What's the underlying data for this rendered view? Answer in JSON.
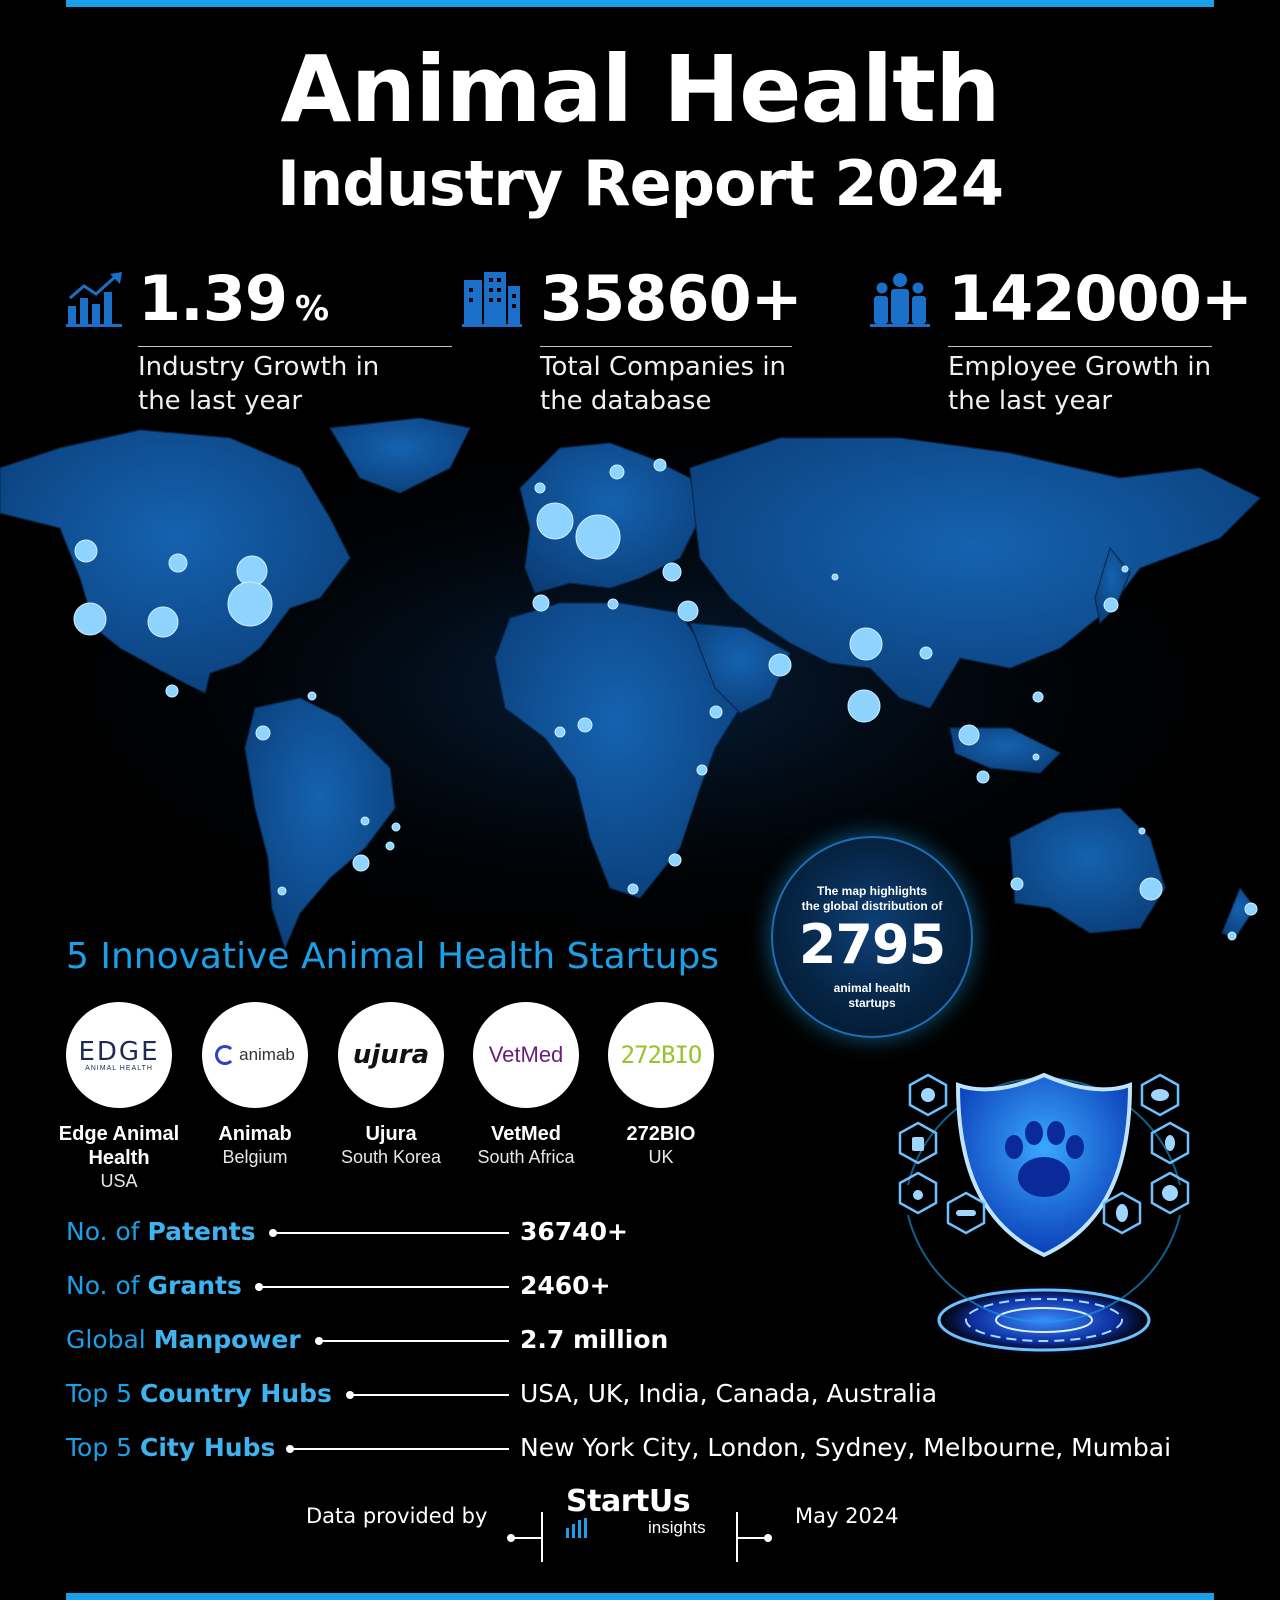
{
  "title": {
    "line1": "Animal Health",
    "line2": "Industry Report 2024"
  },
  "stats": [
    {
      "value": "1.39",
      "unit": "%",
      "desc_line1": "Industry Growth in",
      "desc_line2": "the last year",
      "icon": "growth-chart-icon"
    },
    {
      "value": "35860+",
      "unit": "",
      "desc_line1": "Total Companies in",
      "desc_line2": "the database",
      "icon": "building-icon"
    },
    {
      "value": "142000+",
      "unit": "",
      "desc_line1": "Employee Growth in",
      "desc_line2": "the last year",
      "icon": "people-icon"
    }
  ],
  "map": {
    "callout_line1": "The map highlights",
    "callout_line2": "the global distribution of",
    "count": "2795",
    "callout_line3": "animal health",
    "callout_line4": "startups",
    "accent_color": "#1aa0e8",
    "land_color": "#0d4c8f",
    "marker_color": "#8fd4ff"
  },
  "startups_heading": "5 Innovative Animal Health Startups",
  "startups": [
    {
      "name_line1": "Edge Animal",
      "name_line2": "Health",
      "location": "USA",
      "logo_text": "EDGE",
      "logo_sub": "ANIMAL HEALTH"
    },
    {
      "name_line1": "Animab",
      "name_line2": "",
      "location": "Belgium",
      "logo_text": "animab"
    },
    {
      "name_line1": "Ujura",
      "name_line2": "",
      "location": "South Korea",
      "logo_text": "ujura"
    },
    {
      "name_line1": "VetMed",
      "name_line2": "",
      "location": "South Africa",
      "logo_text": "VetMed"
    },
    {
      "name_line1": "272BIO",
      "name_line2": "",
      "location": "UK",
      "logo_text": "272BIO"
    }
  ],
  "metrics": [
    {
      "prefix": "No. of",
      "key": "Patents",
      "value": "36740+"
    },
    {
      "prefix": "No. of",
      "key": "Grants",
      "value": "2460+"
    },
    {
      "prefix": "Global",
      "key": "Manpower",
      "value": "2.7 million"
    },
    {
      "prefix": "Top 5",
      "key": "Country Hubs",
      "value": "USA, UK, India, Canada, Australia"
    },
    {
      "prefix": "Top 5",
      "key": "City Hubs",
      "value": "New York City, London, Sydney, Melbourne, Mumbai"
    }
  ],
  "footer": {
    "provided_by": "Data provided by",
    "brand": "StartUs",
    "brand_sub": "insights",
    "date": "May 2024"
  }
}
